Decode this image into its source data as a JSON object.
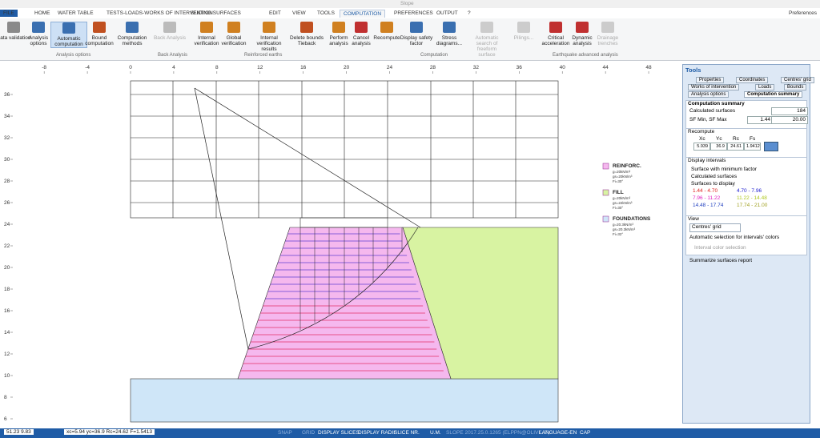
{
  "window": {
    "title": "Slope",
    "preferences": "Preferences"
  },
  "menu": [
    "FILE",
    "HOME",
    "WATER TABLE",
    "TESTS-LOADS-WORKS OF INTERVENTION",
    "SLIDING SURFACES",
    "EDIT",
    "VIEW",
    "TOOLS",
    "COMPUTATION",
    "PREFERENCES",
    "OUTPUT",
    "?"
  ],
  "ribbon": {
    "buttons": [
      "Data validation",
      "Analysis options",
      "Automatic computation",
      "Bound computation",
      "Computation methods",
      "Back Analysis",
      "Internal verification",
      "Global verification",
      "Internal verification results",
      "Delete bounds Tieback",
      "Perform analysis",
      "Cancel analysis",
      "Recompute",
      "Display safety factor",
      "Stress diagrams...",
      "Automatic search of freeform surface",
      "Pilings...",
      "Critical acceleration",
      "Dynamic analysis",
      "Drainage trenches"
    ],
    "groups": [
      "Analysis options",
      "Back Analysis",
      "Reinforced earths",
      "Computation",
      "Earthquake advanced analysis"
    ]
  },
  "drawing": {
    "xticks": [
      -8,
      -4,
      0,
      4,
      8,
      12,
      16,
      20,
      24,
      28,
      32,
      36,
      40,
      44,
      48
    ],
    "yticks": [
      36,
      34,
      32,
      30,
      28,
      26,
      24,
      22,
      20,
      18,
      16,
      14,
      12,
      10,
      8,
      6
    ],
    "legend": [
      {
        "name": "REINFORC.",
        "color": "#f5b8ee",
        "props": [
          "g=20kN/m³",
          "gs=20kN/m³",
          "Fi=30°"
        ]
      },
      {
        "name": "FILL",
        "color": "#d8f3a2",
        "props": [
          "g=20kN/m³",
          "gs=22kN/m³",
          "Fi=30°"
        ]
      },
      {
        "name": "FOUNDATIONS",
        "color": "#cfe6f8",
        "props": [
          "g=20.3kN/m³",
          "gs=20.3kN/m³",
          "Fi=32°"
        ]
      }
    ]
  },
  "tools": {
    "title": "Tools",
    "tabs": [
      [
        "Properties",
        "Coordinates",
        "Centres' grid"
      ],
      [
        "Works of intervention",
        "Loads",
        "Bounds"
      ],
      [
        "Analysis options",
        "Computation summary"
      ]
    ],
    "summary": {
      "title": "Computation summary",
      "calc_label": "Calculated surfaces",
      "calc_value": "184",
      "sf_label": "SF Min, SF Max",
      "sf_min": "1.44",
      "sf_max": "20.00"
    },
    "recompute": {
      "title": "Recompute",
      "headers": [
        "Xc",
        "Yc",
        "Rc",
        "Fs"
      ],
      "values": [
        "5.939",
        "36.9",
        "24.61",
        "1.9412"
      ]
    },
    "intervals": {
      "title": "Display intervals",
      "options": [
        "Surface with minimum factor",
        "Calculated surfaces",
        "Surfaces to display"
      ],
      "ranges": [
        {
          "label": "1.44 - 4.70",
          "color": "#e0201e"
        },
        {
          "label": "4.70 - 7.96",
          "color": "#2020d0"
        },
        {
          "label": "7.96 - 11.22",
          "color": "#e020c0"
        },
        {
          "label": "11.22 - 14.48",
          "color": "#b0c820"
        },
        {
          "label": "14.48 - 17.74",
          "color": "#2040c0"
        },
        {
          "label": "17.74 - 21.00",
          "color": "#a0a020"
        }
      ]
    },
    "view": {
      "title": "View",
      "combo": "Centres' grid",
      "auto": "Automatic selection for intervals' colors",
      "interval_color": "Interval color selection",
      "summarize": "Summarize surfaces report"
    }
  },
  "status": [
    "51.23  9.83",
    "xc=5.94 yc=36.9 Rc=24.62 F=1.5413",
    "SNAP",
    "GRID",
    "DISPLAY SLICES",
    "DISPLAY RADII",
    "SLICE NR.",
    "U.M.",
    "SLOPE 2017.25.0.1265 (ELPPN@OLIVE.IT)",
    "LANGUAGE-EN",
    "CAP"
  ]
}
